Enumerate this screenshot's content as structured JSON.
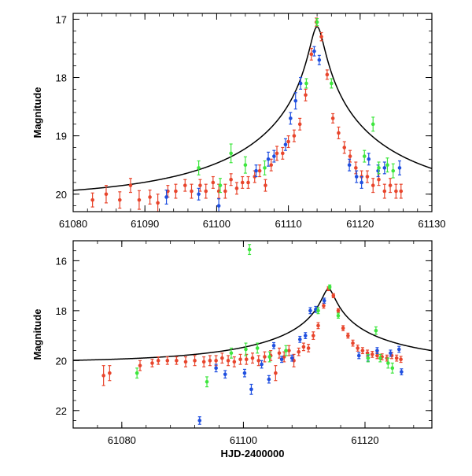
{
  "colors": {
    "blue": "#1f4fe0",
    "red": "#e8452c",
    "green": "#3ee63e",
    "model": "#000000"
  },
  "chart_data": [
    {
      "type": "scatter",
      "panel": "top",
      "xlabel": "",
      "ylabel": "Magnitude",
      "xlim": [
        61080,
        61130
      ],
      "ylim": [
        20.3,
        16.9
      ],
      "y_inverted": true,
      "xticks": [
        61080,
        61090,
        61100,
        61110,
        61120,
        61130
      ],
      "xtick_labels": [
        "61080",
        "61090",
        "61100",
        "61110",
        "61120",
        "61130"
      ],
      "yticks": [
        17,
        18,
        19,
        20
      ],
      "ytick_labels": [
        "17",
        "18",
        "19",
        "20"
      ],
      "model": {
        "baseline": 20.07,
        "peak_mag": 17.13,
        "t0": 61114.0,
        "u0": 0.0365,
        "tE": 24.7,
        "u_min_floor": 0.04
      },
      "series": [
        {
          "name": "red",
          "points": [
            [
              61082.7,
              20.1,
              0.12
            ],
            [
              61084.6,
              20.0,
              0.15
            ],
            [
              61086.5,
              20.1,
              0.14
            ],
            [
              61088.0,
              19.85,
              0.12
            ],
            [
              61089.2,
              20.1,
              0.16
            ],
            [
              61090.7,
              20.05,
              0.12
            ],
            [
              61091.8,
              20.15,
              0.15
            ],
            [
              61093.2,
              19.95,
              0.1
            ],
            [
              61094.3,
              19.95,
              0.12
            ],
            [
              61095.6,
              19.85,
              0.1
            ],
            [
              61096.5,
              19.95,
              0.12
            ],
            [
              61097.7,
              19.85,
              0.1
            ],
            [
              61098.5,
              19.95,
              0.12
            ],
            [
              61099.5,
              19.8,
              0.1
            ],
            [
              61100.3,
              19.95,
              0.12
            ],
            [
              61101.2,
              19.95,
              0.12
            ],
            [
              61102.0,
              19.75,
              0.1
            ],
            [
              61102.8,
              19.9,
              0.1
            ],
            [
              61103.6,
              19.8,
              0.1
            ],
            [
              61104.4,
              19.8,
              0.1
            ],
            [
              61105.3,
              19.7,
              0.1
            ],
            [
              61106.0,
              19.6,
              0.1
            ],
            [
              61106.8,
              19.85,
              0.1
            ],
            [
              61107.6,
              19.5,
              0.1
            ],
            [
              61108.4,
              19.3,
              0.12
            ],
            [
              61109.2,
              19.3,
              0.1
            ],
            [
              61110.0,
              19.1,
              0.1
            ],
            [
              61110.8,
              19.0,
              0.1
            ],
            [
              61111.6,
              18.8,
              0.1
            ],
            [
              61112.4,
              18.3,
              0.1
            ],
            [
              61113.2,
              17.6,
              0.1
            ],
            [
              61113.9,
              17.05,
              0.07
            ],
            [
              61114.6,
              17.3,
              0.07
            ],
            [
              61115.4,
              17.95,
              0.08
            ],
            [
              61116.2,
              18.7,
              0.08
            ],
            [
              61117.0,
              18.95,
              0.1
            ],
            [
              61117.8,
              19.2,
              0.1
            ],
            [
              61118.6,
              19.35,
              0.1
            ],
            [
              61119.4,
              19.55,
              0.1
            ],
            [
              61120.2,
              19.7,
              0.1
            ],
            [
              61121.0,
              19.7,
              0.1
            ],
            [
              61121.8,
              19.85,
              0.12
            ],
            [
              61122.6,
              19.75,
              0.1
            ],
            [
              61123.4,
              19.95,
              0.12
            ],
            [
              61124.2,
              19.85,
              0.12
            ],
            [
              61125.0,
              19.95,
              0.12
            ],
            [
              61125.7,
              19.95,
              0.12
            ]
          ]
        },
        {
          "name": "blue",
          "points": [
            [
              61093.0,
              20.05,
              0.12
            ],
            [
              61097.5,
              20.0,
              0.1
            ],
            [
              61100.3,
              20.2,
              0.12
            ],
            [
              61105.5,
              19.6,
              0.1
            ],
            [
              61107.2,
              19.4,
              0.12
            ],
            [
              61108.0,
              19.35,
              0.1
            ],
            [
              61109.6,
              19.15,
              0.1
            ],
            [
              61110.3,
              18.7,
              0.1
            ],
            [
              61111.0,
              18.4,
              0.14
            ],
            [
              61111.7,
              18.1,
              0.1
            ],
            [
              61113.6,
              17.55,
              0.08
            ],
            [
              61114.3,
              17.7,
              0.08
            ],
            [
              61118.5,
              19.5,
              0.1
            ],
            [
              61119.5,
              19.7,
              0.1
            ],
            [
              61120.2,
              19.8,
              0.1
            ],
            [
              61121.2,
              19.4,
              0.1
            ],
            [
              61122.5,
              19.6,
              0.1
            ],
            [
              61123.4,
              19.55,
              0.1
            ],
            [
              61125.5,
              19.55,
              0.12
            ]
          ]
        },
        {
          "name": "green",
          "points": [
            [
              61097.5,
              19.55,
              0.12
            ],
            [
              61100.5,
              19.85,
              0.12
            ],
            [
              61102.0,
              19.3,
              0.16
            ],
            [
              61104.0,
              19.5,
              0.14
            ],
            [
              61106.7,
              19.55,
              0.12
            ],
            [
              61112.5,
              18.1,
              0.08
            ],
            [
              61114.0,
              17.05,
              0.06
            ],
            [
              61116.0,
              18.1,
              0.08
            ],
            [
              61120.6,
              19.35,
              0.1
            ],
            [
              61121.8,
              18.8,
              0.12
            ],
            [
              61122.6,
              19.55,
              0.1
            ],
            [
              61123.8,
              19.5,
              0.12
            ],
            [
              61124.6,
              19.6,
              0.12
            ]
          ]
        }
      ]
    },
    {
      "type": "scatter",
      "panel": "bottom",
      "xlabel": "HJD-2400000",
      "ylabel": "Magnitude",
      "xlim": [
        61072,
        61131
      ],
      "ylim": [
        22.7,
        15.2
      ],
      "y_inverted": true,
      "xticks": [
        61080,
        61100,
        61120
      ],
      "xtick_labels": [
        "61080",
        "61100",
        "61120"
      ],
      "yticks": [
        16,
        18,
        20,
        22
      ],
      "ytick_labels": [
        "16",
        "18",
        "20",
        "22"
      ],
      "model": {
        "baseline": 20.07,
        "peak_mag": 17.13,
        "t0": 61114.0,
        "u0": 0.0365,
        "tE": 24.7,
        "u_min_floor": 0.04
      },
      "series": [
        {
          "name": "red",
          "points": [
            [
              61077.0,
              20.6,
              0.4
            ],
            [
              61078.0,
              20.5,
              0.3
            ],
            [
              61083.0,
              20.2,
              0.2
            ],
            [
              61085.0,
              20.1,
              0.15
            ],
            [
              61086.0,
              20.0,
              0.15
            ],
            [
              61087.5,
              20.0,
              0.15
            ],
            [
              61089.0,
              20.0,
              0.15
            ],
            [
              61090.5,
              20.05,
              0.2
            ],
            [
              61092.0,
              20.0,
              0.2
            ],
            [
              61093.5,
              20.05,
              0.2
            ],
            [
              61094.5,
              20.0,
              0.2
            ],
            [
              61095.5,
              20.0,
              0.2
            ],
            [
              61096.5,
              19.9,
              0.2
            ],
            [
              61097.5,
              20.0,
              0.2
            ],
            [
              61098.5,
              20.05,
              0.2
            ],
            [
              61099.5,
              19.95,
              0.2
            ],
            [
              61100.5,
              19.95,
              0.2
            ],
            [
              61101.5,
              19.9,
              0.2
            ],
            [
              61102.5,
              20.0,
              0.2
            ],
            [
              61103.5,
              19.85,
              0.2
            ],
            [
              61104.5,
              19.8,
              0.2
            ],
            [
              61105.3,
              20.5,
              0.3
            ],
            [
              61105.9,
              19.7,
              0.2
            ],
            [
              61106.7,
              19.85,
              0.2
            ],
            [
              61107.5,
              19.6,
              0.2
            ],
            [
              61108.3,
              20.0,
              0.25
            ],
            [
              61109.1,
              19.65,
              0.15
            ],
            [
              61109.9,
              19.45,
              0.15
            ],
            [
              61110.7,
              19.5,
              0.15
            ],
            [
              61111.5,
              19.0,
              0.15
            ],
            [
              61112.3,
              18.6,
              0.12
            ],
            [
              61113.2,
              17.8,
              0.1
            ],
            [
              61114.0,
              17.12,
              0.08
            ],
            [
              61114.8,
              17.4,
              0.08
            ],
            [
              61115.6,
              18.0,
              0.08
            ],
            [
              61116.4,
              18.7,
              0.1
            ],
            [
              61117.2,
              19.0,
              0.1
            ],
            [
              61118.0,
              19.3,
              0.12
            ],
            [
              61118.8,
              19.5,
              0.12
            ],
            [
              61119.6,
              19.6,
              0.12
            ],
            [
              61120.4,
              19.7,
              0.12
            ],
            [
              61121.2,
              19.75,
              0.12
            ],
            [
              61122.0,
              19.8,
              0.12
            ],
            [
              61122.8,
              19.85,
              0.12
            ],
            [
              61123.6,
              19.9,
              0.12
            ],
            [
              61124.4,
              19.8,
              0.12
            ],
            [
              61125.2,
              19.9,
              0.12
            ],
            [
              61125.9,
              19.95,
              0.12
            ]
          ]
        },
        {
          "name": "blue",
          "points": [
            [
              61092.8,
              22.4,
              0.15
            ],
            [
              61095.5,
              20.3,
              0.15
            ],
            [
              61097.0,
              20.55,
              0.15
            ],
            [
              61100.2,
              20.5,
              0.15
            ],
            [
              61101.3,
              21.15,
              0.2
            ],
            [
              61103.0,
              20.15,
              0.15
            ],
            [
              61104.2,
              20.75,
              0.15
            ],
            [
              61105.0,
              19.4,
              0.12
            ],
            [
              61106.3,
              19.95,
              0.12
            ],
            [
              61108.0,
              19.9,
              0.12
            ],
            [
              61109.3,
              19.15,
              0.12
            ],
            [
              61110.2,
              19.0,
              0.12
            ],
            [
              61111.0,
              18.0,
              0.12
            ],
            [
              61111.9,
              17.95,
              0.12
            ],
            [
              61113.3,
              17.6,
              0.1
            ],
            [
              61119.0,
              19.8,
              0.12
            ],
            [
              61120.5,
              19.9,
              0.12
            ],
            [
              61122.0,
              19.6,
              0.12
            ],
            [
              61124.2,
              19.7,
              0.12
            ],
            [
              61125.6,
              19.55,
              0.12
            ],
            [
              61126.0,
              20.45,
              0.12
            ]
          ]
        },
        {
          "name": "green",
          "points": [
            [
              61082.5,
              20.5,
              0.2
            ],
            [
              61094.0,
              20.85,
              0.2
            ],
            [
              61098.0,
              19.7,
              0.2
            ],
            [
              61100.4,
              19.55,
              0.25
            ],
            [
              61101.0,
              15.55,
              0.2
            ],
            [
              61102.3,
              19.5,
              0.2
            ],
            [
              61104.3,
              19.85,
              0.2
            ],
            [
              61107.0,
              19.6,
              0.2
            ],
            [
              61112.3,
              18.0,
              0.12
            ],
            [
              61114.2,
              17.05,
              0.08
            ],
            [
              61115.6,
              18.2,
              0.1
            ],
            [
              61120.5,
              19.9,
              0.15
            ],
            [
              61121.8,
              18.8,
              0.15
            ],
            [
              61122.5,
              19.9,
              0.15
            ],
            [
              61123.8,
              20.1,
              0.2
            ],
            [
              61124.5,
              20.3,
              0.2
            ]
          ]
        }
      ]
    }
  ]
}
